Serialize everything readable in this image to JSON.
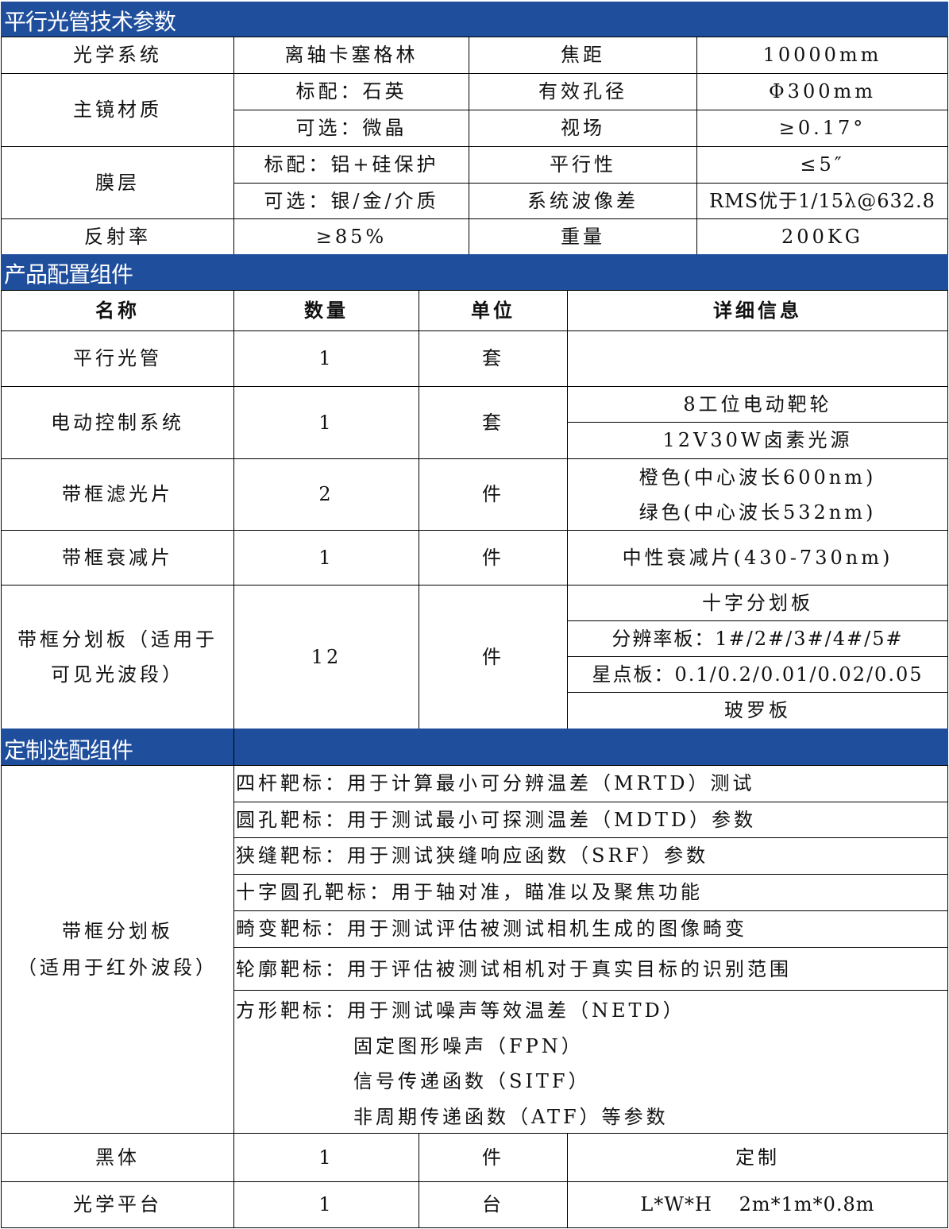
{
  "section1": {
    "title": "平行光管技术参数",
    "rows": [
      {
        "label": "光学系统",
        "value": "离轴卡塞格林",
        "label2": "焦距",
        "value2": "10000mm"
      },
      {
        "label": "主镜材质",
        "sub": [
          {
            "value": "标配：石英",
            "label2": "有效孔径",
            "value2": "Φ300mm"
          },
          {
            "value": "可选：微晶",
            "label2": "视场",
            "value2": "≥0.17°"
          }
        ]
      },
      {
        "label": "膜层",
        "sub": [
          {
            "value": "标配：铝+硅保护",
            "label2": "平行性",
            "value2": "≤5″"
          },
          {
            "value": "可选：银/金/介质",
            "label2": "系统波像差",
            "value2": "RMS优于1/15λ@632.8"
          }
        ]
      },
      {
        "label": "反射率",
        "value": "≥85%",
        "label2": "重量",
        "value2": "200KG"
      }
    ]
  },
  "section2": {
    "title": "产品配置组件",
    "headers": [
      "名称",
      "数量",
      "单位",
      "详细信息"
    ],
    "rows": [
      {
        "name": "平行光管",
        "qty": "1",
        "unit": "套",
        "details": []
      },
      {
        "name": "电动控制系统",
        "qty": "1",
        "unit": "套",
        "details": [
          "8工位电动靶轮",
          "12V30W卤素光源"
        ]
      },
      {
        "name": "带框滤光片",
        "qty": "2",
        "unit": "件",
        "details": [
          "橙色(中心波长600nm)",
          "绿色(中心波长532nm)"
        ]
      },
      {
        "name": "带框衰减片",
        "qty": "1",
        "unit": "件",
        "details": [
          "中性衰减片(430-730nm)"
        ]
      },
      {
        "name": "带框分划板（适用于可见光波段）",
        "qty": "12",
        "unit": "件",
        "details": [
          "十字分划板",
          "分辨率板：1#/2#/3#/4#/5#",
          "星点板：0.1/0.2/0.01/0.02/0.05",
          "玻罗板"
        ]
      }
    ]
  },
  "section3": {
    "title": "定制选配组件",
    "group": {
      "name_line1": "带框分划板",
      "name_line2": "（适用于红外波段）",
      "items": [
        "四杆靶标：用于计算最小可分辨温差（MRTD）测试",
        "圆孔靶标：用于测试最小可探测温差（MDTD）参数",
        "狭缝靶标：用于测试狭缝响应函数（SRF）参数",
        "十字圆孔靶标：用于轴对准，瞄准以及聚焦功能",
        "畸变靶标：用于测试评估被测试相机生成的图像畸变",
        "轮廓靶标：用于评估被测试相机对于真实目标的识别范围"
      ],
      "last_item": [
        "方形靶标：用于测试噪声等效温差（NETD）",
        "固定图形噪声（FPN）",
        "信号传递函数（SITF）",
        "非周期传递函数（ATF）等参数"
      ]
    },
    "rows": [
      {
        "name": "黑体",
        "qty": "1",
        "unit": "件",
        "detail": "定制"
      },
      {
        "name": "光学平台",
        "qty": "1",
        "unit": "台",
        "detail": "L*W*H　 2m*1m*0.8m"
      }
    ]
  },
  "colors": {
    "header_bg": "#1f4e9c",
    "header_text": "#ffffff"
  }
}
